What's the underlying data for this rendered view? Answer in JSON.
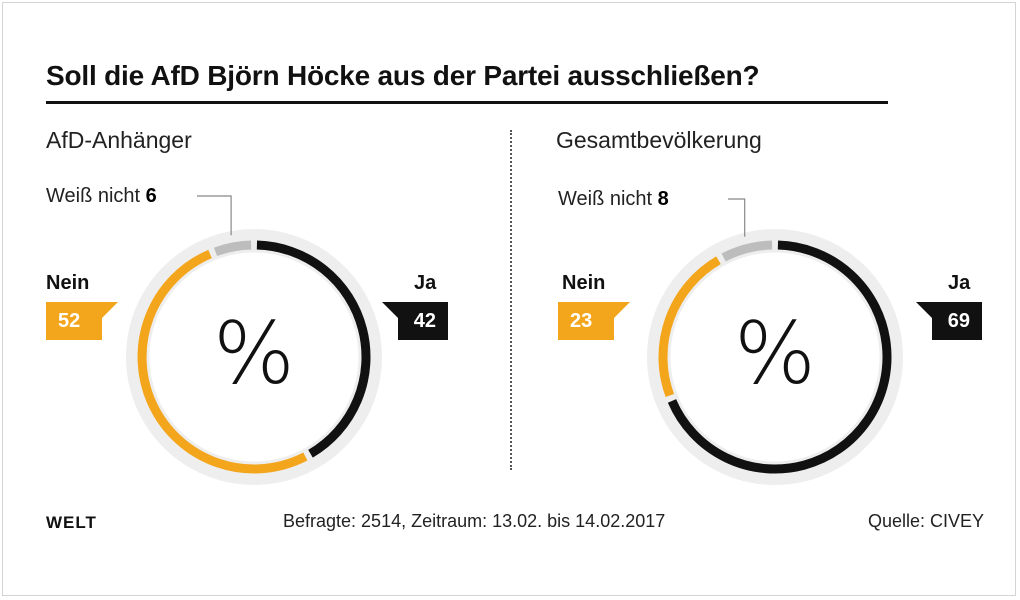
{
  "title": "Soll die AfD Björn Höcke aus der Partei ausschließen?",
  "footer": {
    "logo": "WELT",
    "note": "Befragte: 2514, Zeitraum: 13.02. bis 14.02.2017",
    "source": "Quelle: CIVEY"
  },
  "colors": {
    "ja": "#111111",
    "nein": "#f3a51c",
    "weiss_nicht": "#bdbdbd",
    "ring_background": "#eeeeee"
  },
  "chart_data": [
    {
      "type": "pie",
      "title": "AfD-Anhänger",
      "center_symbol": "%",
      "categories": [
        "Ja",
        "Nein",
        "Weiß nicht"
      ],
      "values": [
        42,
        52,
        6
      ],
      "labels": {
        "ja": "Ja",
        "ja_value": "42",
        "nein": "Nein",
        "nein_value": "52",
        "weiss_nicht": "Weiß nicht",
        "weiss_nicht_value": "6"
      }
    },
    {
      "type": "pie",
      "title": "Gesamtbevölkerung",
      "center_symbol": "%",
      "categories": [
        "Ja",
        "Nein",
        "Weiß nicht"
      ],
      "values": [
        69,
        23,
        8
      ],
      "labels": {
        "ja": "Ja",
        "ja_value": "69",
        "nein": "Nein",
        "nein_value": "23",
        "weiss_nicht": "Weiß nicht",
        "weiss_nicht_value": "8"
      }
    }
  ]
}
